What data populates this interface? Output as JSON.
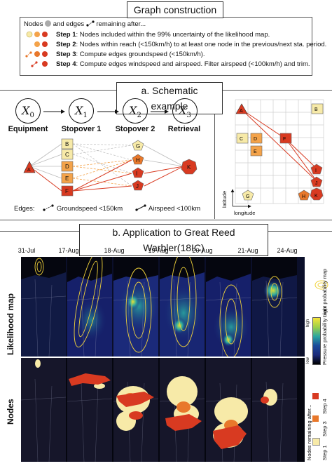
{
  "section1": {
    "title": "Graph construction",
    "intro_nodes": "Nodes",
    "intro_edges": "and edges",
    "intro_rest": "remaining after...",
    "steps": [
      {
        "label": "Step 1",
        "text": ": Nodes included within the 99% uncertainty of the likelihood map."
      },
      {
        "label": "Step 2",
        "text": ": Nodes within reach (<150km/h) to at least one node in the previous/next sta. period."
      },
      {
        "label": "Step 3",
        "text": ": Compute edges groundspeed (<150km/h)."
      },
      {
        "label": "Step 4",
        "text": ": Compute edges windspeed and airspeed. Filter airspeed (<100km/h) and trim."
      }
    ],
    "colors": {
      "step1": "#f7eaa8",
      "step2": "#f4a34a",
      "step3": "#e8782b",
      "step4": "#d83a21"
    }
  },
  "section2": {
    "title": "a. Schematic example",
    "nodes": [
      {
        "var": "X",
        "sub": "0",
        "label": "Equipment"
      },
      {
        "var": "X",
        "sub": "1",
        "label": "Stopover 1"
      },
      {
        "var": "X",
        "sub": "2",
        "label": "Stopover 2"
      },
      {
        "var": "X",
        "sub": "3",
        "label": "Retrieval"
      }
    ],
    "edges_label": "Edges:",
    "groundspeed_label": "Groundspeed <150km",
    "airspeed_label": "Airspeed <100km",
    "node_letters": {
      "A": "A",
      "B": "B",
      "C": "C",
      "D": "D",
      "E": "E",
      "F": "F",
      "G": "G",
      "H": "H",
      "I": "I",
      "J": "J",
      "K": "K"
    },
    "node_subs": {
      "A": "0",
      "B": "1",
      "C": "1",
      "D": "1",
      "E": "1",
      "F": "1",
      "G": "2",
      "H": "2",
      "I": "2",
      "J": "2",
      "K": "3"
    },
    "grid_latitude": "latitude",
    "grid_longitude": "longitude"
  },
  "section3": {
    "title": "b. Application to Great Reed Warbler(18IC)",
    "dates": [
      "31-Jul",
      "17-Aug",
      "18-Aug",
      "19-Aug",
      "20-Aug",
      "21-Aug",
      "24-Aug"
    ],
    "row1_label": "Likelihood map",
    "row2_label": "Nodes",
    "legend_light": "Light probability map",
    "legend_pressure": "Pressure probability map",
    "legend_high": "high",
    "legend_low": "low",
    "legend_nodes": "Nodes remaining after...",
    "legend_step1": "Step 1",
    "legend_step3": "Step 3",
    "legend_step4": "Step 4"
  }
}
